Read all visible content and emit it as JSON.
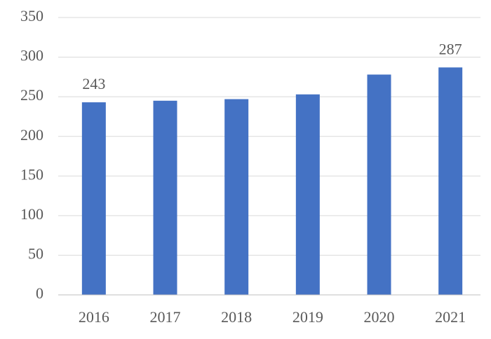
{
  "chart_data": {
    "type": "bar",
    "categories": [
      "2016",
      "2017",
      "2018",
      "2019",
      "2020",
      "2021"
    ],
    "values": [
      243,
      245,
      247,
      253,
      278,
      287
    ],
    "value_labels": [
      "243",
      null,
      null,
      null,
      null,
      "287"
    ],
    "color": "#4472c4",
    "ylim": [
      0,
      350
    ],
    "yticks": [
      0,
      50,
      100,
      150,
      200,
      250,
      300,
      350
    ],
    "grid": true
  }
}
